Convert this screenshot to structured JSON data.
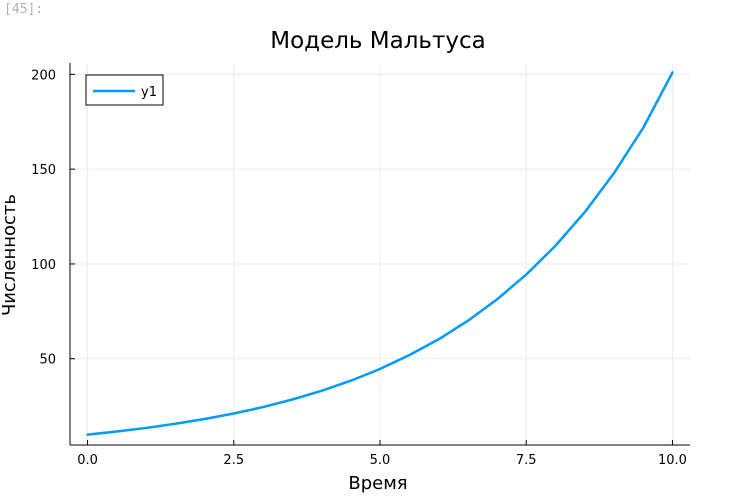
{
  "cell": {
    "prompt": "[45]:"
  },
  "chart_data": {
    "type": "line",
    "title": "Модель Мальтуса",
    "xlabel": "Время",
    "ylabel": "Численность",
    "xlim": [
      -0.3,
      10.3
    ],
    "ylim": [
      4.5,
      206
    ],
    "xticks": [
      0.0,
      2.5,
      5.0,
      7.5,
      10.0
    ],
    "xtick_labels": [
      "0.0",
      "2.5",
      "5.0",
      "7.5",
      "10.0"
    ],
    "yticks": [
      50,
      100,
      150,
      200
    ],
    "ytick_labels": [
      "50",
      "100",
      "150",
      "200"
    ],
    "grid": true,
    "legend": "top-left",
    "series": [
      {
        "name": "y1",
        "color": "#009af9",
        "x": [
          0,
          0.5,
          1,
          1.5,
          2,
          2.5,
          3,
          3.5,
          4,
          4.5,
          5,
          5.5,
          6,
          6.5,
          7,
          7.5,
          8,
          8.5,
          9,
          9.5,
          10
        ],
        "y": [
          10,
          11.6,
          13.5,
          15.7,
          18.2,
          21.1,
          24.5,
          28.5,
          33.1,
          38.4,
          44.6,
          51.9,
          60.2,
          70.0,
          81.3,
          94.4,
          109.6,
          127.3,
          147.9,
          171.8,
          201.0
        ]
      }
    ]
  }
}
